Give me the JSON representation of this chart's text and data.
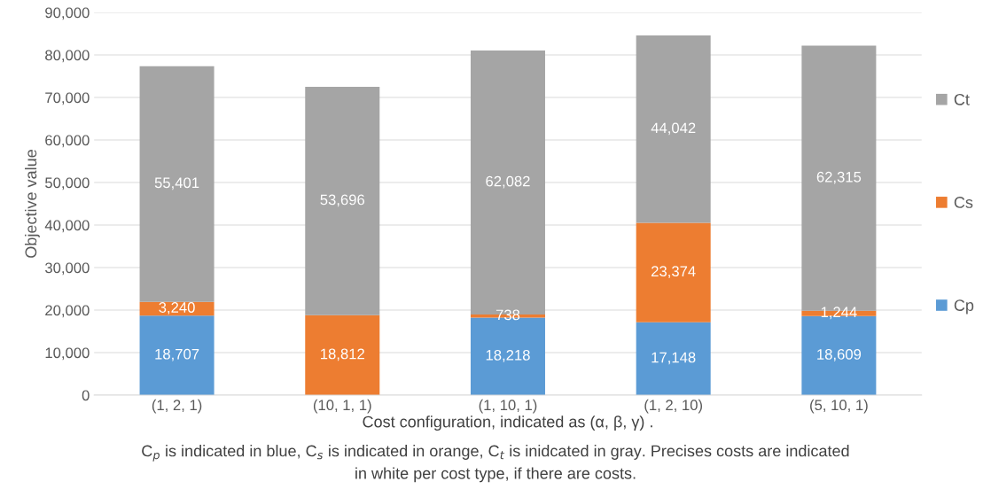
{
  "chart_data": {
    "type": "bar",
    "stacked": true,
    "xlabel": "Cost configuration, indicated as (α, β, γ) .",
    "ylabel": "Objective value",
    "categories": [
      "(1, 2, 1)",
      "(10, 1, 1)",
      "(1, 10, 1)",
      "(1, 2, 10)",
      "(5, 10, 1)"
    ],
    "series": [
      {
        "name": "Cp",
        "color": "#5b9bd5",
        "values": [
          18707,
          0,
          18218,
          17148,
          18609
        ],
        "value_labels": [
          "18,707",
          null,
          "18,218",
          "17,148",
          "18,609"
        ]
      },
      {
        "name": "Cs",
        "color": "#ed7d31",
        "values": [
          3240,
          18812,
          738,
          23374,
          1244
        ],
        "value_labels": [
          "3,240",
          "18,812",
          "738",
          "23,374",
          "1,244"
        ]
      },
      {
        "name": "Ct",
        "color": "#a5a5a5",
        "values": [
          55401,
          53696,
          62082,
          44042,
          62315
        ],
        "value_labels": [
          "55,401",
          "53,696",
          "62,082",
          "44,042",
          "62,315"
        ]
      }
    ],
    "ylim": [
      0,
      90000
    ],
    "yticks": [
      0,
      {
        "value": 10000,
        "label": "10,000"
      },
      {
        "value": 20000,
        "label": "20,000"
      },
      {
        "value": 30000,
        "label": "30,000"
      },
      {
        "value": 40000,
        "label": "40,000"
      },
      {
        "value": 50000,
        "label": "50,000"
      },
      {
        "value": 60000,
        "label": "60,000"
      },
      {
        "value": 70000,
        "label": "70,000"
      },
      {
        "value": 80000,
        "label": "80,000"
      },
      {
        "value": 90000,
        "label": "90,000"
      }
    ],
    "grid": "y",
    "legend": "right",
    "annotations": [
      "C$_{p}$ is indicated in blue, C$_{s}$ is indicated in orange, C$_{t}$ is inidcated in gray. Precises costs are indicated\nin white per cost type, if there are costs."
    ]
  }
}
